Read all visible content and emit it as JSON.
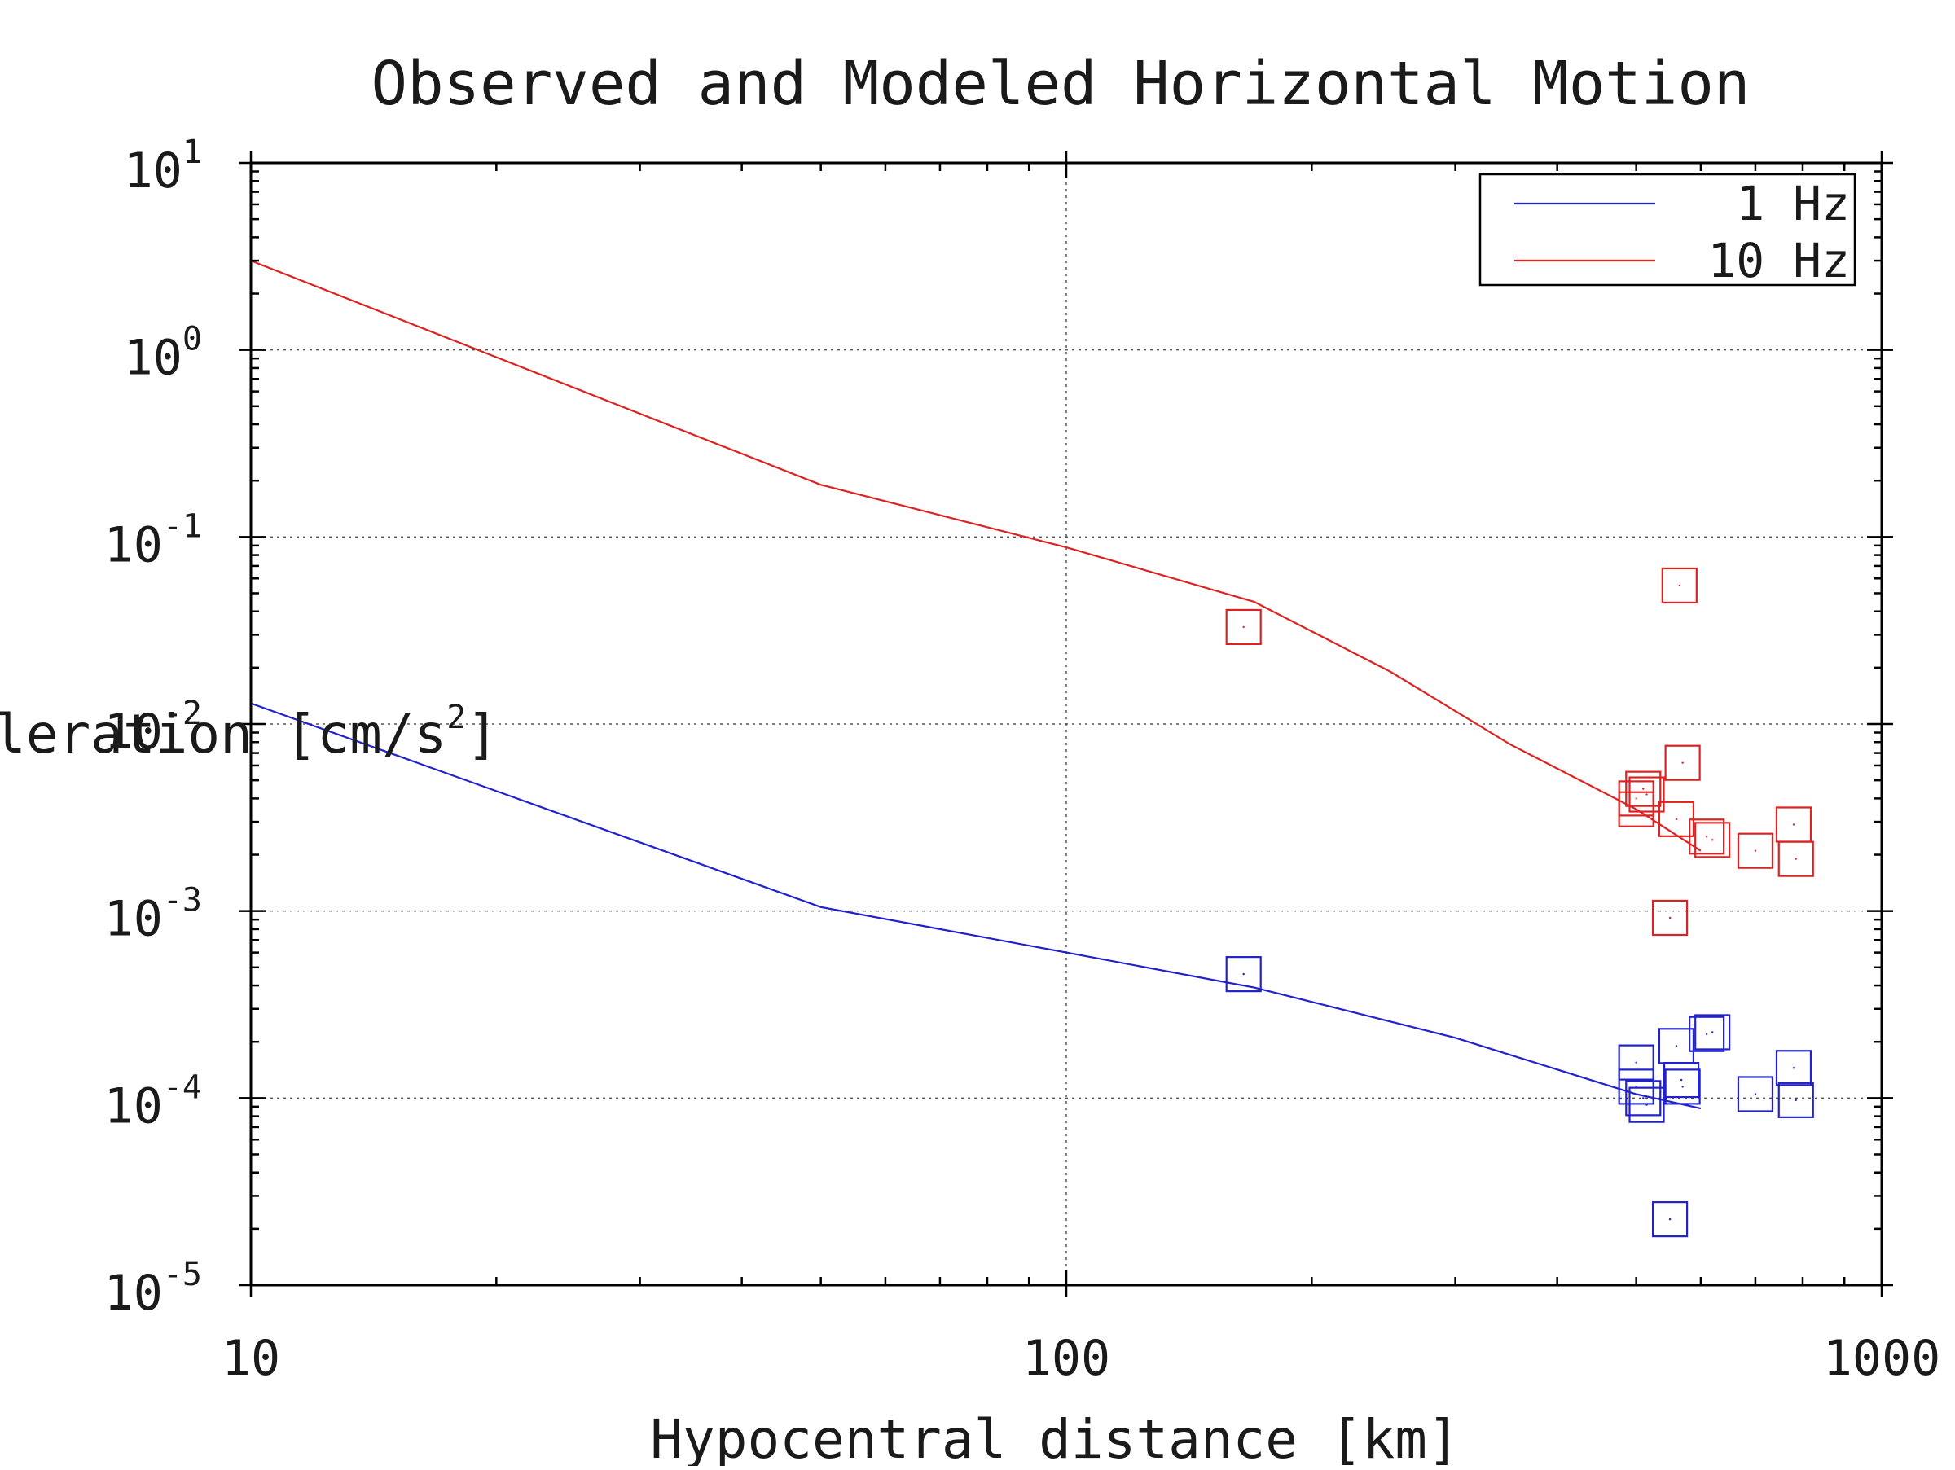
{
  "chart_data": {
    "type": "scatter",
    "title": "Observed and Modeled Horizontal Motion",
    "xlabel": "Hypocentral distance [km]",
    "ylabel": "leration [cm/s",
    "ylabel_superscript": "2",
    "ylabel_suffix": "]",
    "xscale": "log",
    "yscale": "log",
    "xlim": [
      10,
      1000
    ],
    "ylim": [
      1e-05,
      10
    ],
    "x_ticks": [
      {
        "value": 10,
        "label": "10"
      },
      {
        "value": 100,
        "label": "100"
      },
      {
        "value": 1000,
        "label": "1000"
      }
    ],
    "y_ticks": [
      {
        "value": 10,
        "base": "10",
        "exp": "1"
      },
      {
        "value": 1,
        "base": "10",
        "exp": "0"
      },
      {
        "value": 0.1,
        "base": "10",
        "exp": "-1"
      },
      {
        "value": 0.01,
        "base": "10",
        "exp": "-2"
      },
      {
        "value": 0.001,
        "base": "10",
        "exp": "-3"
      },
      {
        "value": 0.0001,
        "base": "10",
        "exp": "-4"
      },
      {
        "value": 1e-05,
        "base": "10",
        "exp": "-5"
      }
    ],
    "grid": true,
    "legend_position": "top-right",
    "series": [
      {
        "name": "1 Hz",
        "color": "#2222cc",
        "line": {
          "x": [
            10,
            50,
            100,
            170,
            300,
            500,
            600
          ],
          "y": [
            0.0129,
            0.00105,
            0.0006,
            0.00039,
            0.00021,
            0.000105,
            8.8e-05
          ]
        },
        "points": {
          "x": [
            165,
            500,
            500,
            510,
            515,
            550,
            560,
            568,
            570,
            610,
            620,
            700,
            780,
            785
          ],
          "y": [
            0.00046,
            0.000155,
            0.000115,
            0.0001,
            9.2e-05,
            2.25e-05,
            0.00019,
            0.000125,
            0.000115,
            0.00022,
            0.000225,
            0.000105,
            0.000145,
            9.75e-05
          ]
        }
      },
      {
        "name": "10 Hz",
        "color": "#dd2222",
        "line": {
          "x": [
            10,
            50,
            100,
            170,
            250,
            350,
            500,
            600
          ],
          "y": [
            3.0,
            0.19,
            0.088,
            0.045,
            0.019,
            0.0078,
            0.0035,
            0.0021
          ]
        },
        "points": {
          "x": [
            165,
            500,
            500,
            510,
            515,
            550,
            560,
            565,
            570,
            610,
            620,
            700,
            780,
            785
          ],
          "y": [
            0.033,
            0.004,
            0.0035,
            0.0045,
            0.0042,
            0.00092,
            0.0031,
            0.055,
            0.0062,
            0.0025,
            0.0024,
            0.0021,
            0.0029,
            0.0019
          ]
        }
      }
    ]
  }
}
